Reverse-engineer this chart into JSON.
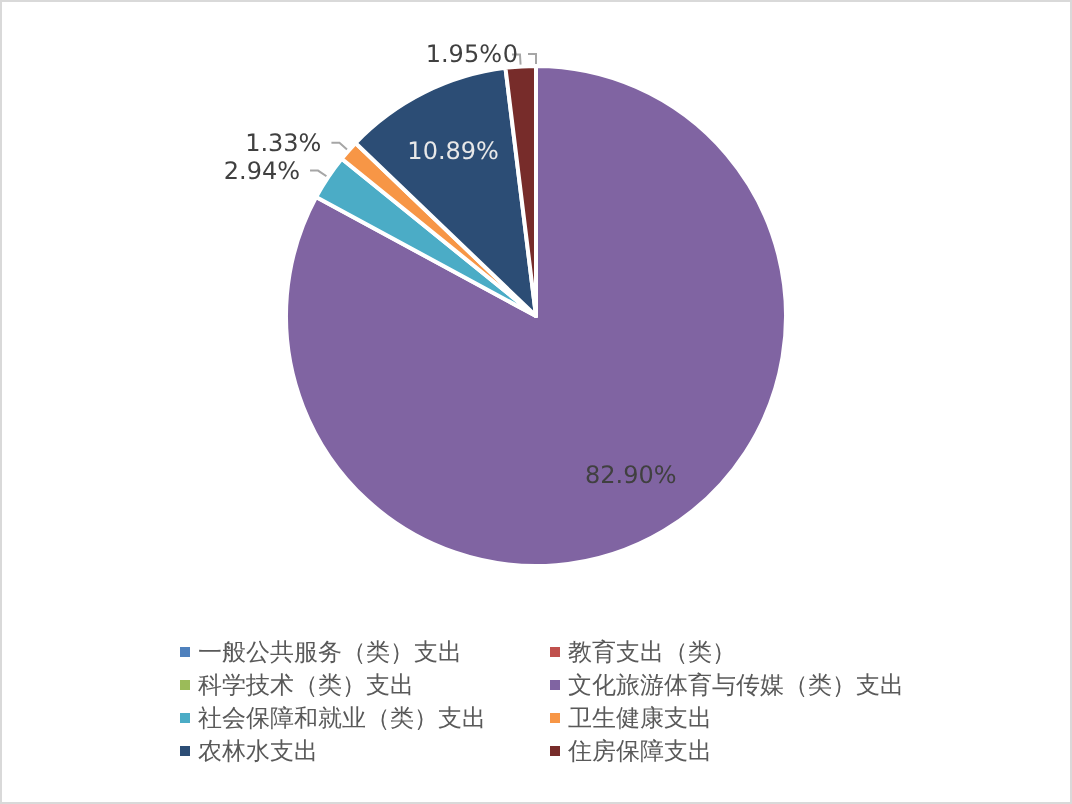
{
  "chart_data": {
    "type": "pie",
    "categories": [
      "一般公共服务（类）支出",
      "教育支出（类）",
      "科学技术（类）支出",
      "文化旅游体育与传媒（类）支出",
      "社会保障和就业（类）支出",
      "卫生健康支出",
      "农林水支出",
      "住房保障支出"
    ],
    "values": [
      0,
      0,
      0,
      82.9,
      2.94,
      1.33,
      10.89,
      1.95
    ],
    "value_labels": [
      "0",
      null,
      null,
      "82.90%",
      "2.94%",
      "1.33%",
      "10.89%",
      "1.95%"
    ],
    "colors": [
      "#4f81bd",
      "#c0504d",
      "#9bbb59",
      "#8064a2",
      "#4bacc6",
      "#f79646",
      "#2c4d75",
      "#772c2a"
    ],
    "legend": "bottom"
  }
}
